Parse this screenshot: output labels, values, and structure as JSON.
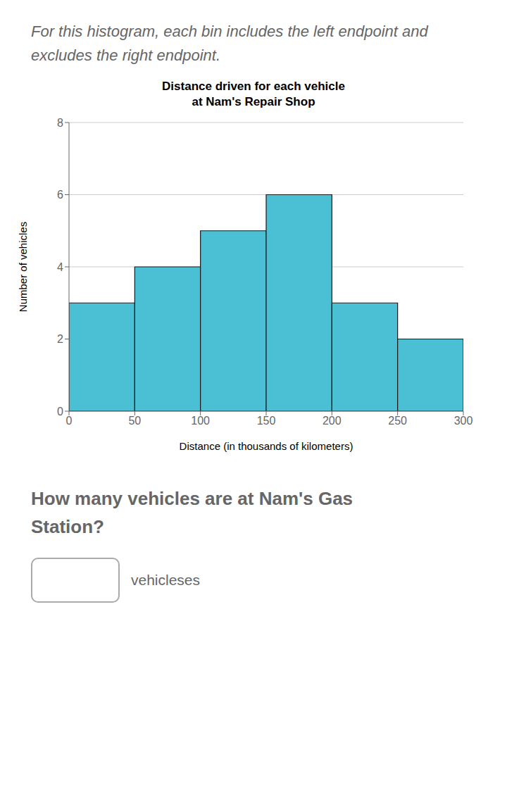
{
  "chart_data": {
    "type": "histogram",
    "title": "Distance driven for each vehicle\nat Nam's Repair Shop",
    "xlabel": "Distance (in thousands of kilometers)",
    "ylabel": "Number of vehicles",
    "bins": [
      0,
      50,
      100,
      150,
      200,
      250,
      300
    ],
    "values": [
      3,
      4,
      5,
      6,
      3,
      2
    ],
    "color": "#4BBFD4",
    "xlim": [
      0,
      300
    ],
    "ylim": [
      0,
      8
    ],
    "xticks": [
      0,
      50,
      100,
      150,
      200,
      250,
      300
    ],
    "yticks": [
      0,
      2,
      4,
      6,
      8
    ],
    "grid": true,
    "annotations": [
      "For this histogram, each bin includes the left endpoint and excludes the right endpoint.",
      "How many vehicles are at Nam's Gas\nStation?",
      "vehicleses"
    ]
  }
}
